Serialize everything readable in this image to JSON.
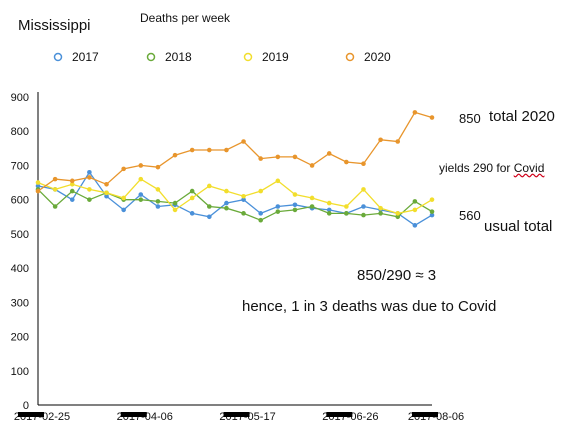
{
  "chart_data": {
    "type": "line",
    "title": "Mississippi",
    "subtitle": "Deaths per week",
    "xlabel": "",
    "ylabel": "",
    "ylim": [
      0,
      900
    ],
    "yticks": [
      0,
      100,
      200,
      300,
      400,
      500,
      600,
      700,
      800,
      900
    ],
    "x_tick_labels": [
      "2017-02-25",
      "2017-04-06",
      "2017-05-17",
      "2017-06-26",
      "2017-08-06"
    ],
    "grid": false,
    "legend_position": "top",
    "series": [
      {
        "name": "2017",
        "color": "#4a90d9",
        "values": [
          640,
          630,
          600,
          680,
          610,
          570,
          615,
          580,
          585,
          560,
          550,
          590,
          600,
          560,
          580,
          585,
          575,
          570,
          560,
          580,
          570,
          560,
          525,
          555
        ]
      },
      {
        "name": "2018",
        "color": "#6aaa3a",
        "values": [
          630,
          580,
          625,
          600,
          620,
          600,
          600,
          595,
          590,
          625,
          580,
          575,
          560,
          540,
          565,
          570,
          580,
          560,
          560,
          555,
          560,
          550,
          595,
          565
        ]
      },
      {
        "name": "2019",
        "color": "#f2de2c",
        "values": [
          650,
          630,
          645,
          630,
          620,
          605,
          660,
          630,
          570,
          605,
          640,
          625,
          610,
          625,
          655,
          615,
          605,
          590,
          580,
          630,
          575,
          560,
          570,
          600
        ]
      },
      {
        "name": "2020",
        "color": "#e8952c",
        "values": [
          625,
          660,
          655,
          665,
          645,
          690,
          700,
          695,
          730,
          745,
          745,
          745,
          770,
          720,
          725,
          725,
          700,
          735,
          710,
          705,
          775,
          770,
          855,
          840
        ]
      }
    ]
  },
  "annotations": {
    "total_2020_value": "850",
    "total_2020_label": "total 2020",
    "yields_label": "yields 290 for ",
    "yields_covid": "Covid",
    "usual_value": "560",
    "usual_label": "usual total",
    "ratio": "850/290 ≈ 3",
    "conclusion": "hence, 1 in 3 deaths was due to Covid"
  }
}
